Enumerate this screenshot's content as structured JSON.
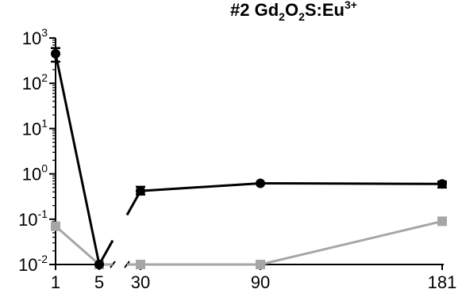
{
  "chart_data": {
    "type": "line",
    "title": {
      "prefix": "#2 Gd",
      "sub1": "2",
      "mid": "O",
      "sub2": "2",
      "tail": "S:Eu",
      "sup": "3+"
    },
    "xlabel": "",
    "ylabel": "",
    "y_scale": "log",
    "ylim": [
      0.01,
      1000
    ],
    "y_ticks": [
      {
        "value": 0.01,
        "base": "10",
        "exp": "-2"
      },
      {
        "value": 0.1,
        "base": "10",
        "exp": "-1"
      },
      {
        "value": 1,
        "base": "10",
        "exp": "0"
      },
      {
        "value": 10,
        "base": "10",
        "exp": "1"
      },
      {
        "value": 100,
        "base": "10",
        "exp": "2"
      },
      {
        "value": 1000,
        "base": "10",
        "exp": "3"
      }
    ],
    "x_axis_break": {
      "between": [
        5,
        30
      ]
    },
    "x_segments": [
      {
        "range": [
          1,
          5
        ],
        "ticks": [
          {
            "value": 1,
            "label": "1"
          },
          {
            "value": 5,
            "label": "5"
          }
        ]
      },
      {
        "range": [
          30,
          181
        ],
        "ticks": [
          {
            "value": 30,
            "label": "30"
          },
          {
            "value": 90,
            "label": "90"
          },
          {
            "value": 181,
            "label": "181"
          }
        ]
      }
    ],
    "grid": false,
    "series": [
      {
        "marker": "circle",
        "color": "#000000",
        "points": [
          {
            "x": 1,
            "y": 450,
            "err_low": 300,
            "err_high": 600
          },
          {
            "x": 5,
            "y": 0.01
          },
          {
            "x": 30,
            "y": 0.42,
            "err_low": 0.35,
            "err_high": 0.52
          },
          {
            "x": 90,
            "y": 0.62
          },
          {
            "x": 181,
            "y": 0.6,
            "err_low": 0.5,
            "err_high": 0.68
          }
        ]
      },
      {
        "marker": "square",
        "color": "#a6a6a6",
        "points": [
          {
            "x": 1,
            "y": 0.07
          },
          {
            "x": 5,
            "y": 0.01
          },
          {
            "x": 30,
            "y": 0.01
          },
          {
            "x": 90,
            "y": 0.01
          },
          {
            "x": 181,
            "y": 0.09
          }
        ]
      }
    ]
  }
}
